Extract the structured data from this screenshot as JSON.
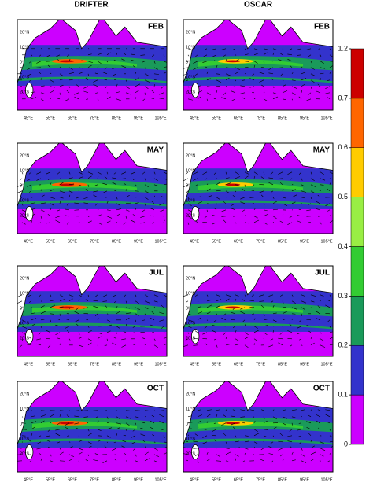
{
  "columns": [
    "DRIFTER",
    "OSCAR"
  ],
  "panels": [
    {
      "label": "FEB"
    },
    {
      "label": "FEB"
    },
    {
      "label": "MAY"
    },
    {
      "label": "MAY"
    },
    {
      "label": "JUL"
    },
    {
      "label": "JUL"
    },
    {
      "label": "OCT"
    },
    {
      "label": "OCT"
    }
  ],
  "lon_ticks": [
    "45°E",
    "55°E",
    "65°E",
    "75°E",
    "85°E",
    "95°E",
    "105°E"
  ],
  "lat_ticks": [
    "20°N",
    "10°N",
    "0°",
    "10°S",
    "20°S"
  ],
  "colorbar": {
    "levels": [
      0,
      0.1,
      0.2,
      0.3,
      0.4,
      0.5,
      0.6,
      0.7,
      1.2
    ],
    "colors": [
      "#cc00ff",
      "#3333cc",
      "#1a9a5a",
      "#33cc33",
      "#99ee44",
      "#ffcc00",
      "#ff6600",
      "#cc0000"
    ]
  }
}
